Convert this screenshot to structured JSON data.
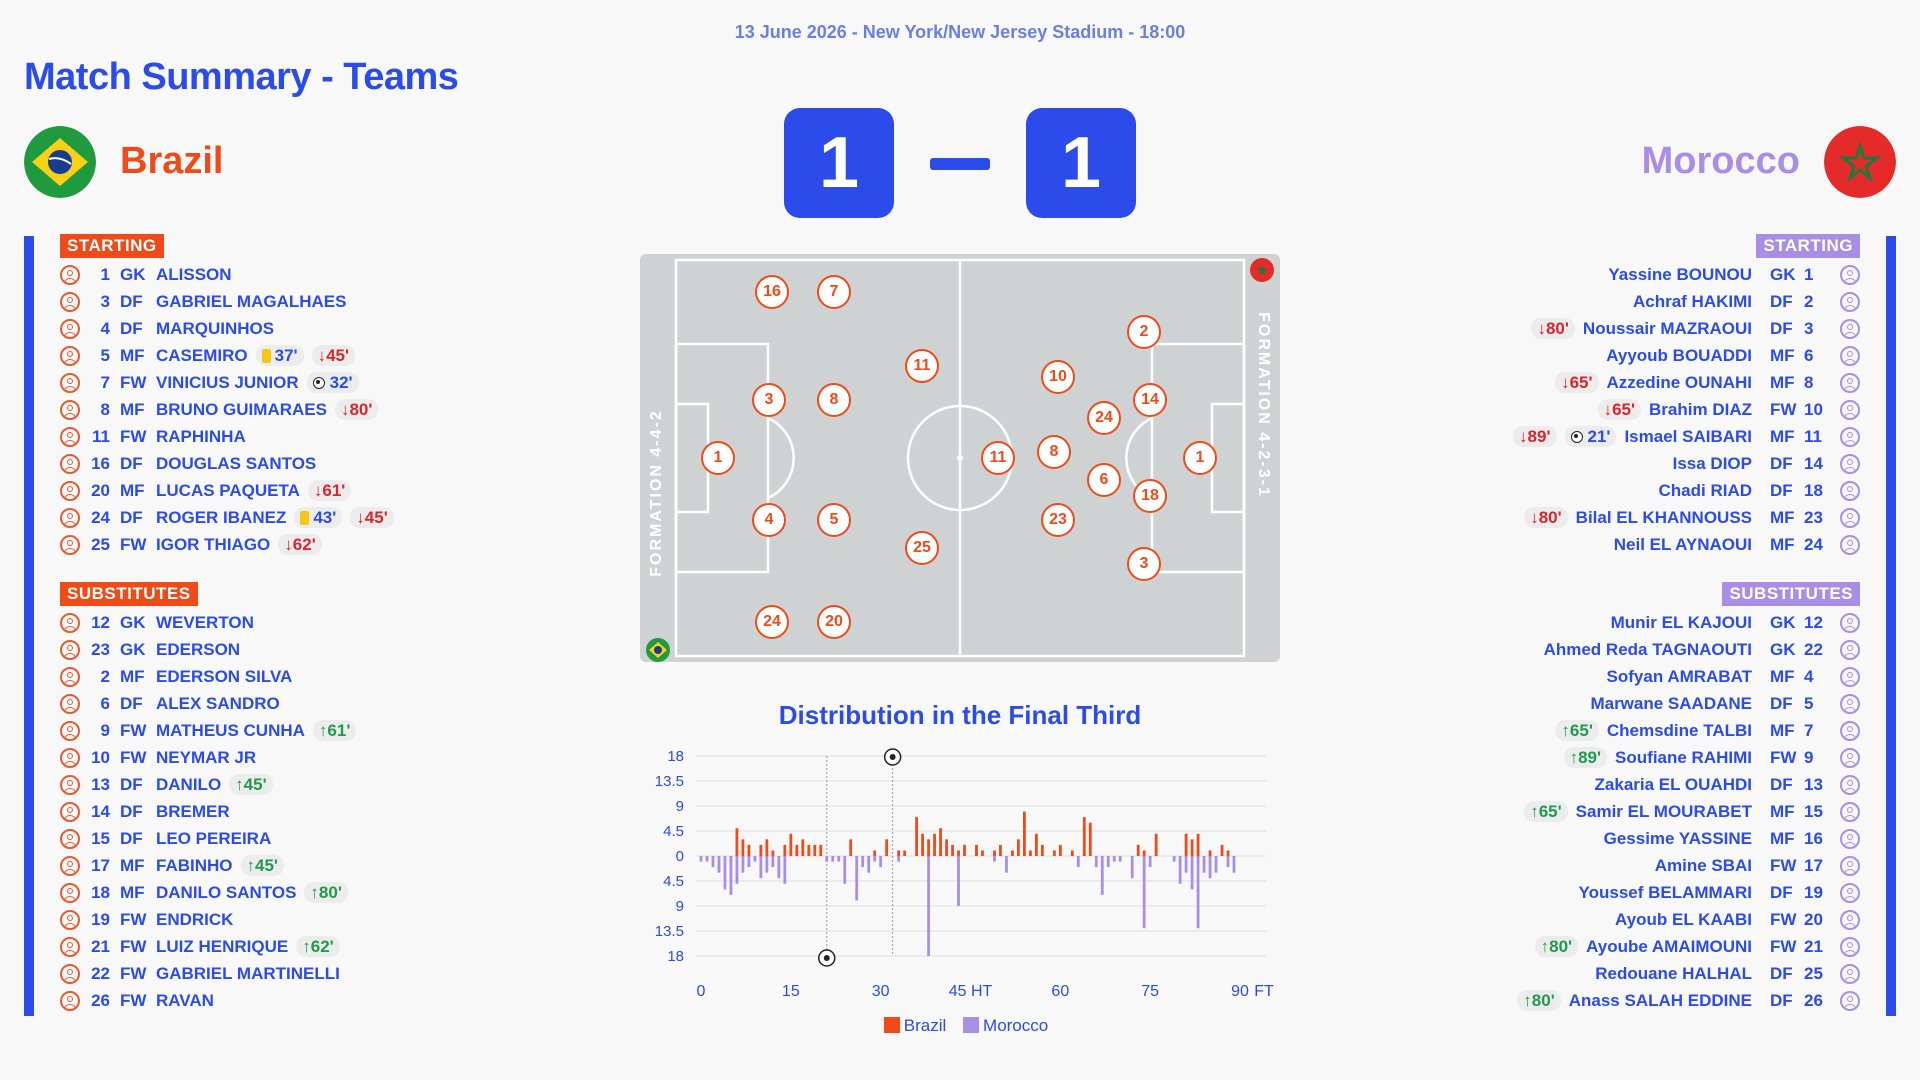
{
  "header": {
    "date_line": "13 June 2026 - New York/New Jersey Stadium - 18:00",
    "title": "Match Summary - Teams"
  },
  "home": {
    "name": "Brazil",
    "score": "1",
    "color": "#f04a18",
    "formation": "FORMATION 4-4-2",
    "starting_label": "STARTING",
    "subs_label": "SUBSTITUTES",
    "starting": [
      {
        "num": "1",
        "pos": "GK",
        "name": "ALISSON",
        "events": []
      },
      {
        "num": "3",
        "pos": "DF",
        "name": "GABRIEL MAGALHAES",
        "events": []
      },
      {
        "num": "4",
        "pos": "DF",
        "name": "MARQUINHOS",
        "events": []
      },
      {
        "num": "5",
        "pos": "MF",
        "name": "CASEMIRO",
        "events": [
          {
            "type": "yellow",
            "time": "37'"
          },
          {
            "type": "out",
            "time": "45'"
          }
        ]
      },
      {
        "num": "7",
        "pos": "FW",
        "name": "VINICIUS JUNIOR",
        "events": [
          {
            "type": "goal",
            "time": "32'"
          }
        ]
      },
      {
        "num": "8",
        "pos": "MF",
        "name": "BRUNO GUIMARAES",
        "events": [
          {
            "type": "out",
            "time": "80'"
          }
        ]
      },
      {
        "num": "11",
        "pos": "FW",
        "name": "RAPHINHA",
        "events": []
      },
      {
        "num": "16",
        "pos": "DF",
        "name": "DOUGLAS SANTOS",
        "events": []
      },
      {
        "num": "20",
        "pos": "MF",
        "name": "LUCAS PAQUETA",
        "events": [
          {
            "type": "out",
            "time": "61'"
          }
        ]
      },
      {
        "num": "24",
        "pos": "DF",
        "name": "ROGER IBANEZ",
        "events": [
          {
            "type": "yellow",
            "time": "43'"
          },
          {
            "type": "out",
            "time": "45'"
          }
        ]
      },
      {
        "num": "25",
        "pos": "FW",
        "name": "IGOR THIAGO",
        "events": [
          {
            "type": "out",
            "time": "62'"
          }
        ]
      }
    ],
    "subs": [
      {
        "num": "12",
        "pos": "GK",
        "name": "WEVERTON",
        "events": []
      },
      {
        "num": "23",
        "pos": "GK",
        "name": "EDERSON",
        "events": []
      },
      {
        "num": "2",
        "pos": "MF",
        "name": "EDERSON SILVA",
        "events": []
      },
      {
        "num": "6",
        "pos": "DF",
        "name": "ALEX SANDRO",
        "events": []
      },
      {
        "num": "9",
        "pos": "FW",
        "name": "MATHEUS CUNHA",
        "events": [
          {
            "type": "in",
            "time": "61'"
          }
        ]
      },
      {
        "num": "10",
        "pos": "FW",
        "name": "NEYMAR JR",
        "events": []
      },
      {
        "num": "13",
        "pos": "DF",
        "name": "DANILO",
        "events": [
          {
            "type": "in",
            "time": "45'"
          }
        ]
      },
      {
        "num": "14",
        "pos": "DF",
        "name": "BREMER",
        "events": []
      },
      {
        "num": "15",
        "pos": "DF",
        "name": "LEO PEREIRA",
        "events": []
      },
      {
        "num": "17",
        "pos": "MF",
        "name": "FABINHO",
        "events": [
          {
            "type": "in",
            "time": "45'"
          }
        ]
      },
      {
        "num": "18",
        "pos": "MF",
        "name": "DANILO SANTOS",
        "events": [
          {
            "type": "in",
            "time": "80'"
          }
        ]
      },
      {
        "num": "19",
        "pos": "FW",
        "name": "ENDRICK",
        "events": []
      },
      {
        "num": "21",
        "pos": "FW",
        "name": "LUIZ HENRIQUE",
        "events": [
          {
            "type": "in",
            "time": "62'"
          }
        ]
      },
      {
        "num": "22",
        "pos": "FW",
        "name": "GABRIEL MARTINELLI",
        "events": []
      },
      {
        "num": "26",
        "pos": "FW",
        "name": "RAVAN",
        "events": []
      }
    ],
    "pitch_numbers": [
      "16",
      "7",
      "11",
      "3",
      "8",
      "1",
      "4",
      "5",
      "25",
      "24",
      "20"
    ]
  },
  "away": {
    "name": "Morocco",
    "score": "1",
    "color": "#a98ee8",
    "formation": "FORMATION 4-2-3-1",
    "starting_label": "STARTING",
    "subs_label": "SUBSTITUTES",
    "starting": [
      {
        "num": "1",
        "pos": "GK",
        "name": "Yassine BOUNOU",
        "events": []
      },
      {
        "num": "2",
        "pos": "DF",
        "name": "Achraf HAKIMI",
        "events": []
      },
      {
        "num": "3",
        "pos": "DF",
        "name": "Noussair MAZRAOUI",
        "events": [
          {
            "type": "out",
            "time": "80'"
          }
        ]
      },
      {
        "num": "6",
        "pos": "MF",
        "name": "Ayyoub BOUADDI",
        "events": []
      },
      {
        "num": "8",
        "pos": "MF",
        "name": "Azzedine OUNAHI",
        "events": [
          {
            "type": "out",
            "time": "65'"
          }
        ]
      },
      {
        "num": "10",
        "pos": "FW",
        "name": "Brahim DIAZ",
        "events": [
          {
            "type": "out",
            "time": "65'"
          }
        ]
      },
      {
        "num": "11",
        "pos": "MF",
        "name": "Ismael SAIBARI",
        "events": [
          {
            "type": "out",
            "time": "89'"
          },
          {
            "type": "goal",
            "time": "21'"
          }
        ]
      },
      {
        "num": "14",
        "pos": "DF",
        "name": "Issa DIOP",
        "events": []
      },
      {
        "num": "18",
        "pos": "DF",
        "name": "Chadi RIAD",
        "events": []
      },
      {
        "num": "23",
        "pos": "MF",
        "name": "Bilal EL KHANNOUSS",
        "events": [
          {
            "type": "out",
            "time": "80'"
          }
        ]
      },
      {
        "num": "24",
        "pos": "MF",
        "name": "Neil EL AYNAOUI",
        "events": []
      }
    ],
    "subs": [
      {
        "num": "12",
        "pos": "GK",
        "name": "Munir EL KAJOUI",
        "events": []
      },
      {
        "num": "22",
        "pos": "GK",
        "name": "Ahmed Reda TAGNAOUTI",
        "events": []
      },
      {
        "num": "4",
        "pos": "MF",
        "name": "Sofyan AMRABAT",
        "events": []
      },
      {
        "num": "5",
        "pos": "DF",
        "name": "Marwane SAADANE",
        "events": []
      },
      {
        "num": "7",
        "pos": "MF",
        "name": "Chemsdine TALBI",
        "events": [
          {
            "type": "in",
            "time": "65'"
          }
        ]
      },
      {
        "num": "9",
        "pos": "FW",
        "name": "Soufiane RAHIMI",
        "events": [
          {
            "type": "in",
            "time": "89'"
          }
        ]
      },
      {
        "num": "13",
        "pos": "DF",
        "name": "Zakaria EL OUAHDI",
        "events": []
      },
      {
        "num": "15",
        "pos": "MF",
        "name": "Samir EL MOURABET",
        "events": [
          {
            "type": "in",
            "time": "65'"
          }
        ]
      },
      {
        "num": "16",
        "pos": "MF",
        "name": "Gessime YASSINE",
        "events": []
      },
      {
        "num": "17",
        "pos": "FW",
        "name": "Amine SBAI",
        "events": []
      },
      {
        "num": "19",
        "pos": "DF",
        "name": "Youssef BELAMMARI",
        "events": []
      },
      {
        "num": "20",
        "pos": "FW",
        "name": "Ayoub EL KAABI",
        "events": []
      },
      {
        "num": "21",
        "pos": "FW",
        "name": "Ayoube AMAIMOUNI",
        "events": [
          {
            "type": "in",
            "time": "80'"
          }
        ]
      },
      {
        "num": "25",
        "pos": "DF",
        "name": "Redouane HALHAL",
        "events": []
      },
      {
        "num": "26",
        "pos": "DF",
        "name": "Anass SALAH EDDINE",
        "events": [
          {
            "type": "in",
            "time": "80'"
          }
        ]
      }
    ],
    "pitch_numbers": [
      "2",
      "10",
      "14",
      "24",
      "11",
      "8",
      "1",
      "6",
      "18",
      "23",
      "3"
    ]
  },
  "chart_data": {
    "type": "bar",
    "title": "Distribution in the Final Third",
    "x_ticks": [
      "0",
      "15",
      "30",
      "45 HT",
      "60",
      "75",
      "90",
      "FT"
    ],
    "y_tick_labels": [
      "18",
      "13.5",
      "9",
      "4.5",
      "0",
      "4.5",
      "9",
      "13.5",
      "18"
    ],
    "ylim": [
      -18,
      18
    ],
    "legend": "bottom-center",
    "goals": [
      {
        "minute": 21,
        "team": "Morocco"
      },
      {
        "minute": 32,
        "team": "Brazil"
      }
    ],
    "series": [
      {
        "name": "Brazil",
        "color": "#f04a18",
        "x": [
          6,
          7,
          8,
          10,
          11,
          12,
          14,
          15,
          16,
          17,
          18,
          19,
          20,
          25,
          29,
          31,
          33,
          34,
          36,
          37,
          38,
          39,
          40,
          41,
          42,
          43,
          44,
          46,
          47,
          49,
          50,
          52,
          53,
          54,
          55,
          56,
          57,
          59,
          60,
          62,
          64,
          65,
          73,
          74,
          76,
          81,
          82,
          83,
          85,
          87,
          88
        ],
        "values": [
          5,
          3,
          2,
          2,
          3,
          1,
          2,
          4,
          2,
          3,
          2,
          2,
          2,
          3,
          1,
          3,
          1,
          1,
          7,
          4,
          3,
          4,
          5,
          3,
          2,
          1,
          2,
          2,
          1,
          1,
          2,
          1,
          3,
          8,
          1,
          4,
          2,
          1,
          2,
          1,
          7,
          6,
          2,
          1,
          4,
          4,
          3,
          4,
          1,
          2,
          1
        ]
      },
      {
        "name": "Morocco",
        "color": "#a98ee8",
        "x": [
          0,
          1,
          2,
          3,
          4,
          5,
          6,
          7,
          8,
          9,
          10,
          11,
          12,
          13,
          14,
          21,
          22,
          23,
          24,
          26,
          27,
          28,
          29,
          30,
          33,
          38,
          43,
          49,
          51,
          63,
          66,
          67,
          68,
          69,
          70,
          72,
          74,
          75,
          79,
          80,
          81,
          82,
          83,
          84,
          85,
          86,
          88,
          89
        ],
        "values": [
          1,
          1,
          2,
          3,
          6,
          7,
          5,
          3,
          2,
          1,
          4,
          3,
          2,
          4,
          5,
          1,
          1,
          1,
          5,
          8,
          2,
          3,
          1,
          2,
          1,
          18,
          9,
          1,
          3,
          2,
          2,
          7,
          2,
          1,
          1,
          4,
          13,
          2,
          1,
          5,
          3,
          6,
          13,
          3,
          4,
          3,
          2,
          3
        ]
      }
    ]
  },
  "legend_labels": {
    "home": "Brazil",
    "away": "Morocco"
  }
}
